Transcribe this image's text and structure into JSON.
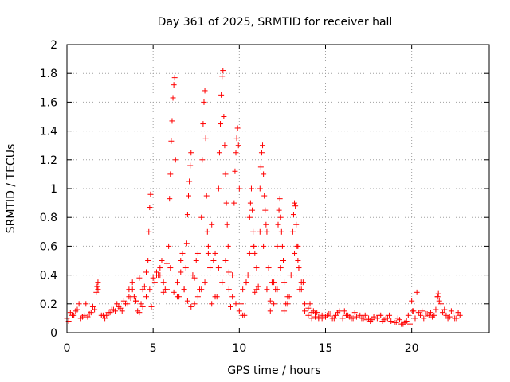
{
  "chart_data": {
    "type": "scatter",
    "title": "Day 361 of 2025, SRMTID for receiver hall",
    "xlabel": "GPS time / hours",
    "ylabel": "SRMTID / TECUs",
    "xlim": [
      0,
      24.5
    ],
    "ylim": [
      0,
      2
    ],
    "x_ticks": [
      0,
      5,
      10,
      15,
      20
    ],
    "x_tick_labels": [
      "0",
      "5",
      "10",
      "15",
      "20"
    ],
    "y_ticks": [
      0,
      0.2,
      0.4,
      0.6,
      0.8,
      1.0,
      1.2,
      1.4,
      1.6,
      1.8,
      2.0
    ],
    "y_tick_labels": [
      "0",
      "0.2",
      "0.4",
      "0.6",
      "0.8",
      "1",
      "1.2",
      "1.4",
      "1.6",
      "1.8",
      "2"
    ],
    "grid": true,
    "marker": "+",
    "color": "#ff0000",
    "series": [
      {
        "name": "SRMTID",
        "x": [
          0.0,
          0.2,
          0.4,
          0.6,
          0.8,
          1.0,
          1.2,
          1.4,
          1.6,
          1.8,
          2.0,
          2.2,
          2.4,
          2.6,
          2.8,
          3.0,
          3.2,
          3.4,
          3.6,
          3.8,
          4.0,
          4.2,
          4.4,
          4.6,
          4.8,
          5.0,
          5.2,
          5.4,
          5.6,
          5.8,
          6.0,
          6.2,
          6.4,
          6.6,
          6.8,
          7.0,
          7.2,
          7.4,
          7.6,
          7.8,
          8.0,
          8.2,
          8.4,
          8.6,
          8.8,
          9.0,
          9.2,
          9.4,
          9.6,
          9.8,
          10.0,
          10.2,
          10.4,
          10.6,
          10.8,
          11.0,
          11.2,
          11.4,
          11.6,
          11.8,
          12.0,
          12.2,
          12.4,
          12.6,
          12.8,
          13.0,
          13.2,
          13.4,
          13.6,
          13.8,
          14.0,
          14.2,
          14.4,
          14.6,
          14.8,
          15.0,
          15.2,
          15.4,
          15.6,
          15.8,
          16.0,
          16.2,
          16.4,
          16.6,
          16.8,
          17.0,
          17.2,
          17.4,
          17.6,
          17.8,
          18.0,
          18.2,
          18.4,
          18.6,
          18.8,
          19.0,
          19.2,
          19.4,
          19.6,
          19.8,
          20.0,
          20.2,
          20.4,
          20.6,
          20.8,
          21.0,
          21.2,
          21.4,
          21.6,
          21.8,
          22.0,
          22.2,
          22.4,
          22.6,
          22.8,
          4.7,
          4.75,
          4.8,
          4.85,
          5.9,
          5.95,
          6.0,
          6.05,
          6.1,
          6.15,
          6.2,
          6.25,
          6.3,
          6.9,
          6.95,
          7.0,
          7.05,
          7.1,
          7.15,
          7.2,
          7.8,
          7.85,
          7.9,
          7.95,
          8.0,
          8.05,
          8.1,
          8.15,
          8.2,
          8.8,
          8.85,
          8.9,
          8.95,
          9.0,
          9.05,
          9.1,
          9.15,
          9.2,
          9.25,
          9.3,
          9.35,
          9.7,
          9.75,
          9.8,
          9.85,
          9.9,
          9.95,
          10.0,
          10.6,
          10.65,
          10.7,
          10.75,
          10.8,
          10.85,
          10.9,
          11.2,
          11.25,
          11.3,
          11.35,
          11.4,
          11.45,
          11.5,
          11.55,
          11.6,
          12.2,
          12.25,
          12.3,
          12.35,
          12.4,
          12.45,
          12.5,
          12.55,
          13.1,
          13.15,
          13.2,
          13.25,
          13.3,
          13.35,
          13.4,
          13.45,
          1.7,
          1.75,
          1.8,
          2.1,
          3.6,
          3.8,
          4.1,
          4.3,
          4.5,
          5.1,
          5.3,
          5.5,
          5.7,
          6.4,
          6.6,
          6.8,
          7.3,
          7.5,
          7.7,
          8.3,
          8.5,
          8.7,
          9.4,
          9.6,
          10.1,
          10.3,
          10.5,
          11.0,
          11.7,
          11.9,
          12.0,
          12.7,
          12.9,
          13.5,
          13.7,
          14.1,
          14.3,
          14.5,
          15.1,
          15.3,
          15.5,
          15.7,
          16.1,
          16.3,
          16.5,
          16.7,
          17.1,
          17.3,
          17.5,
          17.7,
          18.1,
          18.3,
          18.5,
          18.7,
          19.1,
          19.3,
          19.5,
          19.7,
          19.9,
          20.1,
          20.3,
          20.5,
          20.7,
          20.9,
          21.1,
          21.3,
          21.5,
          21.7,
          21.9,
          22.1,
          22.3,
          22.5,
          22.7,
          0.1,
          0.3,
          0.5,
          0.7,
          0.9,
          1.1,
          1.3,
          1.5,
          2.3,
          2.5,
          2.7,
          2.9,
          3.1,
          3.3,
          3.5,
          3.7,
          3.9,
          4.0,
          4.2,
          4.4,
          4.6,
          4.9,
          5.2,
          5.4,
          5.6,
          5.8,
          6.5,
          6.7,
          7.4,
          7.6,
          8.4,
          8.6,
          9.5,
          10.2,
          10.4,
          10.9,
          11.1,
          11.8,
          12.1,
          12.6,
          12.8,
          13.6,
          13.8,
          14.0,
          14.2,
          14.4,
          14.6,
          14.8,
          20.05,
          21.5,
          21.55
        ],
        "y": [
          0.1,
          0.14,
          0.12,
          0.16,
          0.1,
          0.12,
          0.11,
          0.14,
          0.16,
          0.3,
          0.12,
          0.1,
          0.14,
          0.16,
          0.15,
          0.18,
          0.15,
          0.2,
          0.25,
          0.3,
          0.22,
          0.14,
          0.18,
          0.25,
          0.3,
          0.38,
          0.42,
          0.4,
          0.35,
          0.3,
          0.45,
          0.28,
          0.35,
          0.5,
          0.3,
          0.22,
          0.18,
          0.2,
          0.25,
          0.3,
          0.35,
          0.6,
          0.75,
          0.55,
          0.45,
          0.35,
          0.5,
          0.3,
          0.25,
          0.2,
          0.15,
          0.12,
          0.35,
          0.55,
          0.6,
          0.45,
          0.7,
          0.6,
          0.3,
          0.15,
          0.2,
          0.3,
          0.45,
          0.35,
          0.25,
          0.4,
          0.55,
          0.6,
          0.3,
          0.15,
          0.12,
          0.1,
          0.11,
          0.1,
          0.12,
          0.11,
          0.13,
          0.1,
          0.12,
          0.15,
          0.1,
          0.12,
          0.11,
          0.1,
          0.11,
          0.12,
          0.1,
          0.09,
          0.08,
          0.11,
          0.1,
          0.12,
          0.09,
          0.1,
          0.08,
          0.07,
          0.1,
          0.06,
          0.07,
          0.12,
          0.22,
          0.1,
          0.14,
          0.15,
          0.13,
          0.12,
          0.11,
          0.16,
          0.22,
          0.14,
          0.12,
          0.11,
          0.13,
          0.1,
          0.12,
          0.5,
          0.7,
          0.87,
          0.96,
          0.6,
          0.93,
          1.1,
          1.33,
          1.47,
          1.63,
          1.72,
          1.77,
          1.2,
          0.45,
          0.62,
          0.82,
          0.95,
          1.05,
          1.16,
          1.25,
          0.8,
          1.2,
          1.45,
          1.6,
          1.68,
          1.35,
          0.95,
          0.7,
          0.55,
          1.0,
          1.25,
          1.45,
          1.65,
          1.78,
          1.82,
          1.5,
          1.3,
          1.1,
          0.9,
          0.75,
          0.6,
          0.9,
          1.12,
          1.25,
          1.35,
          1.42,
          1.3,
          1.0,
          0.8,
          0.9,
          1.0,
          0.85,
          0.7,
          0.6,
          0.55,
          1.0,
          1.15,
          1.25,
          1.3,
          1.1,
          0.95,
          0.85,
          0.75,
          0.7,
          0.6,
          0.75,
          0.85,
          0.93,
          0.8,
          0.7,
          0.6,
          0.5,
          0.7,
          0.82,
          0.9,
          0.88,
          0.75,
          0.6,
          0.5,
          0.45,
          0.28,
          0.32,
          0.35,
          0.12,
          0.3,
          0.35,
          0.15,
          0.2,
          0.32,
          0.35,
          0.4,
          0.5,
          0.3,
          0.25,
          0.42,
          0.3,
          0.4,
          0.5,
          0.3,
          0.45,
          0.5,
          0.25,
          0.42,
          0.4,
          0.2,
          0.12,
          0.4,
          0.3,
          0.45,
          0.35,
          0.35,
          0.2,
          0.25,
          0.3,
          0.35,
          0.2,
          0.15,
          0.14,
          0.12,
          0.13,
          0.1,
          0.14,
          0.15,
          0.12,
          0.1,
          0.14,
          0.1,
          0.12,
          0.1,
          0.09,
          0.12,
          0.08,
          0.1,
          0.12,
          0.07,
          0.09,
          0.06,
          0.08,
          0.06,
          0.15,
          0.28,
          0.12,
          0.1,
          0.13,
          0.14,
          0.12,
          0.25,
          0.2,
          0.16,
          0.1,
          0.15,
          0.1,
          0.14,
          0.08,
          0.12,
          0.15,
          0.2,
          0.11,
          0.2,
          0.13,
          0.18,
          0.12,
          0.14,
          0.16,
          0.2,
          0.17,
          0.22,
          0.2,
          0.24,
          0.25,
          0.22,
          0.38,
          0.3,
          0.42,
          0.18,
          0.4,
          0.45,
          0.28,
          0.48,
          0.25,
          0.55,
          0.38,
          0.55,
          0.2,
          0.25,
          0.18,
          0.3,
          0.35,
          0.28,
          0.32,
          0.22,
          0.3,
          0.15,
          0.2,
          0.35,
          0.2,
          0.17,
          0.14,
          0.13,
          0.11,
          0.1,
          0.15,
          0.25,
          0.27
        ]
      }
    ]
  }
}
